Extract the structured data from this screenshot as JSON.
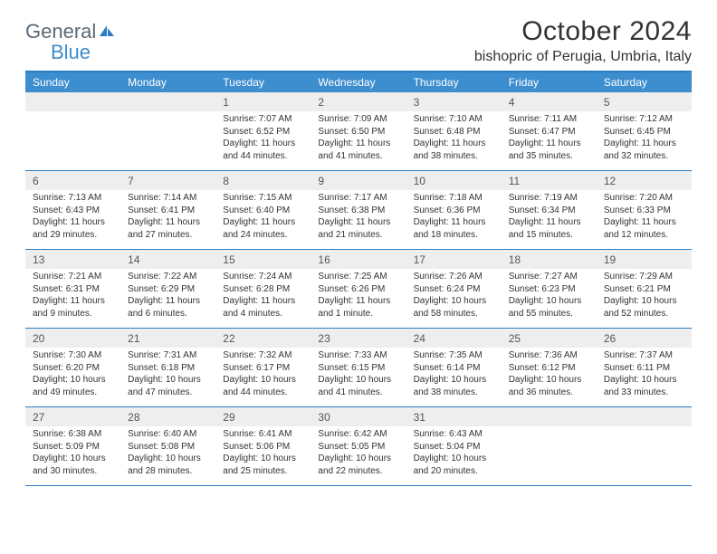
{
  "brand": {
    "word1": "General",
    "word2": "Blue",
    "icon_color": "#2c7cc4",
    "word1_color": "#5a6a77",
    "word2_color": "#3d8ecf"
  },
  "title": "October 2024",
  "location": "bishopric of Perugia, Umbria, Italy",
  "colors": {
    "header_bg": "#3d8ecf",
    "header_text": "#ffffff",
    "daynum_bg": "#eeeeee",
    "daynum_text": "#555555",
    "border": "#2c7cc4",
    "body_text": "#333333",
    "page_bg": "#ffffff"
  },
  "typography": {
    "title_fontsize": 30,
    "location_fontsize": 16,
    "dow_fontsize": 12,
    "daynum_fontsize": 12,
    "detail_fontsize": 10
  },
  "layout": {
    "columns": 7,
    "rows": 5,
    "cell_min_height": 86
  },
  "days_of_week": [
    "Sunday",
    "Monday",
    "Tuesday",
    "Wednesday",
    "Thursday",
    "Friday",
    "Saturday"
  ],
  "days": [
    {
      "n": "",
      "empty": true
    },
    {
      "n": "",
      "empty": true
    },
    {
      "n": "1",
      "sunrise": "Sunrise: 7:07 AM",
      "sunset": "Sunset: 6:52 PM",
      "daylight": "Daylight: 11 hours and 44 minutes."
    },
    {
      "n": "2",
      "sunrise": "Sunrise: 7:09 AM",
      "sunset": "Sunset: 6:50 PM",
      "daylight": "Daylight: 11 hours and 41 minutes."
    },
    {
      "n": "3",
      "sunrise": "Sunrise: 7:10 AM",
      "sunset": "Sunset: 6:48 PM",
      "daylight": "Daylight: 11 hours and 38 minutes."
    },
    {
      "n": "4",
      "sunrise": "Sunrise: 7:11 AM",
      "sunset": "Sunset: 6:47 PM",
      "daylight": "Daylight: 11 hours and 35 minutes."
    },
    {
      "n": "5",
      "sunrise": "Sunrise: 7:12 AM",
      "sunset": "Sunset: 6:45 PM",
      "daylight": "Daylight: 11 hours and 32 minutes."
    },
    {
      "n": "6",
      "sunrise": "Sunrise: 7:13 AM",
      "sunset": "Sunset: 6:43 PM",
      "daylight": "Daylight: 11 hours and 29 minutes."
    },
    {
      "n": "7",
      "sunrise": "Sunrise: 7:14 AM",
      "sunset": "Sunset: 6:41 PM",
      "daylight": "Daylight: 11 hours and 27 minutes."
    },
    {
      "n": "8",
      "sunrise": "Sunrise: 7:15 AM",
      "sunset": "Sunset: 6:40 PM",
      "daylight": "Daylight: 11 hours and 24 minutes."
    },
    {
      "n": "9",
      "sunrise": "Sunrise: 7:17 AM",
      "sunset": "Sunset: 6:38 PM",
      "daylight": "Daylight: 11 hours and 21 minutes."
    },
    {
      "n": "10",
      "sunrise": "Sunrise: 7:18 AM",
      "sunset": "Sunset: 6:36 PM",
      "daylight": "Daylight: 11 hours and 18 minutes."
    },
    {
      "n": "11",
      "sunrise": "Sunrise: 7:19 AM",
      "sunset": "Sunset: 6:34 PM",
      "daylight": "Daylight: 11 hours and 15 minutes."
    },
    {
      "n": "12",
      "sunrise": "Sunrise: 7:20 AM",
      "sunset": "Sunset: 6:33 PM",
      "daylight": "Daylight: 11 hours and 12 minutes."
    },
    {
      "n": "13",
      "sunrise": "Sunrise: 7:21 AM",
      "sunset": "Sunset: 6:31 PM",
      "daylight": "Daylight: 11 hours and 9 minutes."
    },
    {
      "n": "14",
      "sunrise": "Sunrise: 7:22 AM",
      "sunset": "Sunset: 6:29 PM",
      "daylight": "Daylight: 11 hours and 6 minutes."
    },
    {
      "n": "15",
      "sunrise": "Sunrise: 7:24 AM",
      "sunset": "Sunset: 6:28 PM",
      "daylight": "Daylight: 11 hours and 4 minutes."
    },
    {
      "n": "16",
      "sunrise": "Sunrise: 7:25 AM",
      "sunset": "Sunset: 6:26 PM",
      "daylight": "Daylight: 11 hours and 1 minute."
    },
    {
      "n": "17",
      "sunrise": "Sunrise: 7:26 AM",
      "sunset": "Sunset: 6:24 PM",
      "daylight": "Daylight: 10 hours and 58 minutes."
    },
    {
      "n": "18",
      "sunrise": "Sunrise: 7:27 AM",
      "sunset": "Sunset: 6:23 PM",
      "daylight": "Daylight: 10 hours and 55 minutes."
    },
    {
      "n": "19",
      "sunrise": "Sunrise: 7:29 AM",
      "sunset": "Sunset: 6:21 PM",
      "daylight": "Daylight: 10 hours and 52 minutes."
    },
    {
      "n": "20",
      "sunrise": "Sunrise: 7:30 AM",
      "sunset": "Sunset: 6:20 PM",
      "daylight": "Daylight: 10 hours and 49 minutes."
    },
    {
      "n": "21",
      "sunrise": "Sunrise: 7:31 AM",
      "sunset": "Sunset: 6:18 PM",
      "daylight": "Daylight: 10 hours and 47 minutes."
    },
    {
      "n": "22",
      "sunrise": "Sunrise: 7:32 AM",
      "sunset": "Sunset: 6:17 PM",
      "daylight": "Daylight: 10 hours and 44 minutes."
    },
    {
      "n": "23",
      "sunrise": "Sunrise: 7:33 AM",
      "sunset": "Sunset: 6:15 PM",
      "daylight": "Daylight: 10 hours and 41 minutes."
    },
    {
      "n": "24",
      "sunrise": "Sunrise: 7:35 AM",
      "sunset": "Sunset: 6:14 PM",
      "daylight": "Daylight: 10 hours and 38 minutes."
    },
    {
      "n": "25",
      "sunrise": "Sunrise: 7:36 AM",
      "sunset": "Sunset: 6:12 PM",
      "daylight": "Daylight: 10 hours and 36 minutes."
    },
    {
      "n": "26",
      "sunrise": "Sunrise: 7:37 AM",
      "sunset": "Sunset: 6:11 PM",
      "daylight": "Daylight: 10 hours and 33 minutes."
    },
    {
      "n": "27",
      "sunrise": "Sunrise: 6:38 AM",
      "sunset": "Sunset: 5:09 PM",
      "daylight": "Daylight: 10 hours and 30 minutes."
    },
    {
      "n": "28",
      "sunrise": "Sunrise: 6:40 AM",
      "sunset": "Sunset: 5:08 PM",
      "daylight": "Daylight: 10 hours and 28 minutes."
    },
    {
      "n": "29",
      "sunrise": "Sunrise: 6:41 AM",
      "sunset": "Sunset: 5:06 PM",
      "daylight": "Daylight: 10 hours and 25 minutes."
    },
    {
      "n": "30",
      "sunrise": "Sunrise: 6:42 AM",
      "sunset": "Sunset: 5:05 PM",
      "daylight": "Daylight: 10 hours and 22 minutes."
    },
    {
      "n": "31",
      "sunrise": "Sunrise: 6:43 AM",
      "sunset": "Sunset: 5:04 PM",
      "daylight": "Daylight: 10 hours and 20 minutes."
    },
    {
      "n": "",
      "empty": true
    },
    {
      "n": "",
      "empty": true
    }
  ]
}
